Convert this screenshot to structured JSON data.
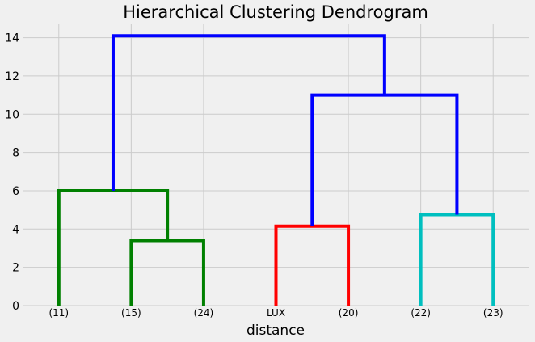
{
  "chart_data": {
    "type": "dendrogram",
    "title": "Hierarchical Clustering Dendrogram",
    "xlabel": "distance",
    "ylabel": "",
    "ylim": [
      0,
      14.7
    ],
    "yticks": [
      0,
      2,
      4,
      6,
      8,
      10,
      12,
      14
    ],
    "grid": true,
    "leaves": [
      "(11)",
      "(15)",
      "(24)",
      "LUX",
      "(20)",
      "(22)",
      "(23)"
    ],
    "links": [
      {
        "left": "(15)",
        "right": "(24)",
        "height": 3.4,
        "color": "#008000"
      },
      {
        "left": "(11)",
        "right": "[(15),(24)]",
        "height": 6.0,
        "color": "#008000"
      },
      {
        "left": "LUX",
        "right": "(20)",
        "height": 4.15,
        "color": "#ff0000"
      },
      {
        "left": "(22)",
        "right": "(23)",
        "height": 4.75,
        "color": "#00bfbf"
      },
      {
        "left": "[LUX,(20)]",
        "right": "[(22),(23)]",
        "height": 11.0,
        "color": "#0000ff"
      },
      {
        "left": "[(11),(15),(24)]",
        "right": "[LUX,(20),(22),(23)]",
        "height": 14.1,
        "color": "#0000ff"
      }
    ]
  }
}
